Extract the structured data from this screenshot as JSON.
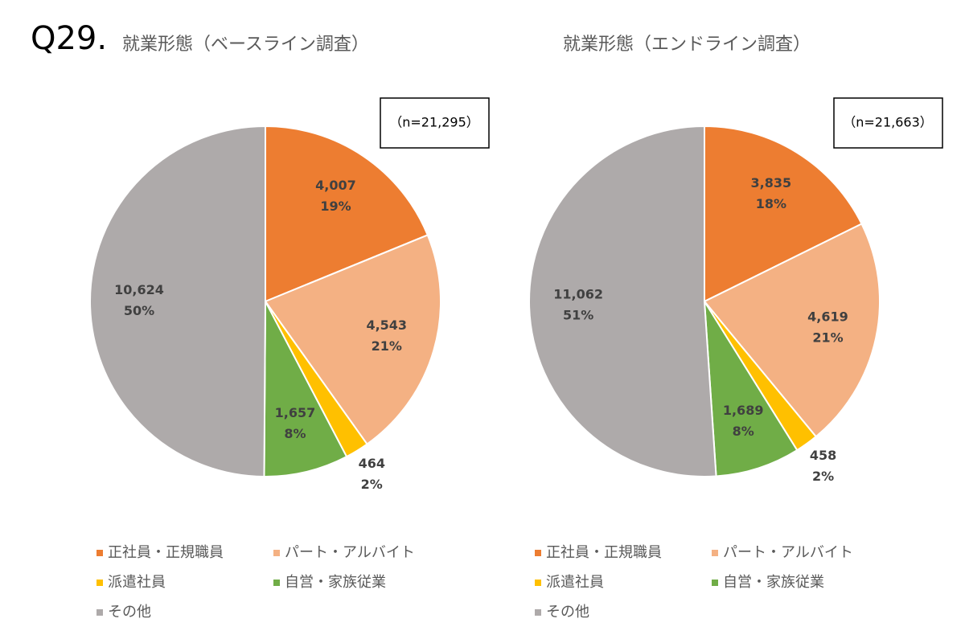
{
  "page_label": "Q29.",
  "chart_data": [
    {
      "type": "pie",
      "title": "就業形態（ベースライン調査）",
      "note": "（n=21,295）",
      "categories": [
        "正社員・正規職員",
        "パート・アルバイト",
        "派遣社員",
        "自営・家族従業",
        "その他"
      ],
      "values": [
        4007,
        4543,
        464,
        1657,
        10624
      ],
      "value_labels": [
        "4,007",
        "4,543",
        "464",
        "1,657",
        "10,624"
      ],
      "percent_labels": [
        "19%",
        "21%",
        "2%",
        "8%",
        "50%"
      ],
      "colors": [
        "#ED7D31",
        "#F4B183",
        "#FFC000",
        "#70AD47",
        "#AEAAAA"
      ]
    },
    {
      "type": "pie",
      "title": "就業形態（エンドライン調査）",
      "note": "（n=21,663）",
      "categories": [
        "正社員・正規職員",
        "パート・アルバイト",
        "派遣社員",
        "自営・家族従業",
        "その他"
      ],
      "values": [
        3835,
        4619,
        458,
        1689,
        11062
      ],
      "value_labels": [
        "3,835",
        "4,619",
        "458",
        "1,689",
        "11,062"
      ],
      "percent_labels": [
        "18%",
        "21%",
        "2%",
        "8%",
        "51%"
      ],
      "colors": [
        "#ED7D31",
        "#F4B183",
        "#FFC000",
        "#70AD47",
        "#AEAAAA"
      ]
    }
  ]
}
